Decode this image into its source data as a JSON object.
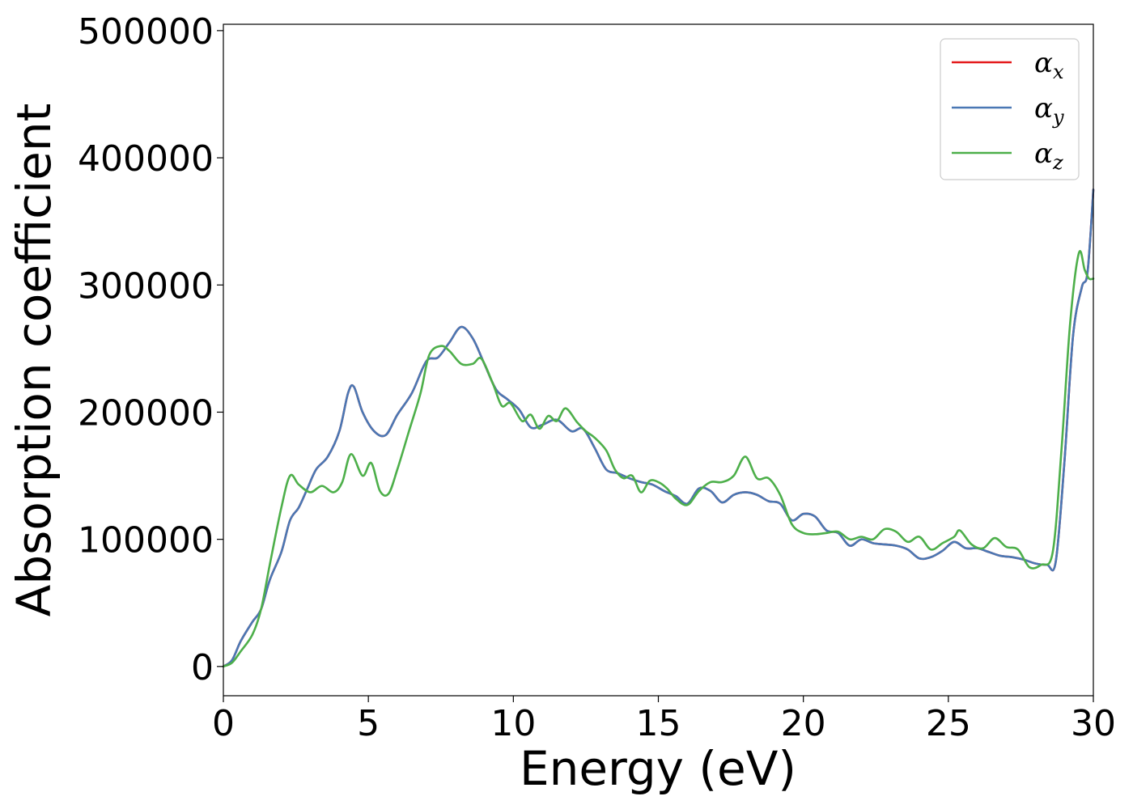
{
  "chart_data": {
    "type": "line",
    "xlabel": "Energy (eV)",
    "ylabel": "Absorption coefficient",
    "xlim": [
      0,
      30
    ],
    "ylim": [
      -23000,
      505000
    ],
    "x_ticks": [
      "0",
      "5",
      "10",
      "15",
      "20",
      "25",
      "30"
    ],
    "y_ticks": [
      "0",
      "100000",
      "200000",
      "300000",
      "400000",
      "500000"
    ],
    "grid": false,
    "legend_position": "top-right",
    "series": [
      {
        "name": "x",
        "color": "#e41a1c",
        "points": [
          [
            0,
            0
          ],
          [
            0.3,
            5000
          ],
          [
            0.6,
            20000
          ],
          [
            1.0,
            35000
          ],
          [
            1.3,
            45000
          ],
          [
            1.6,
            68000
          ],
          [
            2.0,
            90000
          ],
          [
            2.3,
            115000
          ],
          [
            2.6,
            125000
          ],
          [
            2.9,
            140000
          ],
          [
            3.2,
            155000
          ],
          [
            3.6,
            165000
          ],
          [
            4.0,
            185000
          ],
          [
            4.3,
            215000
          ],
          [
            4.5,
            220000
          ],
          [
            4.8,
            200000
          ],
          [
            5.2,
            185000
          ],
          [
            5.6,
            182000
          ],
          [
            6.0,
            198000
          ],
          [
            6.5,
            215000
          ],
          [
            7.0,
            240000
          ],
          [
            7.4,
            243000
          ],
          [
            7.8,
            255000
          ],
          [
            8.2,
            267000
          ],
          [
            8.6,
            258000
          ],
          [
            9.0,
            238000
          ],
          [
            9.4,
            218000
          ],
          [
            9.8,
            210000
          ],
          [
            10.2,
            202000
          ],
          [
            10.6,
            188000
          ],
          [
            11.0,
            190000
          ],
          [
            11.5,
            194000
          ],
          [
            12.0,
            185000
          ],
          [
            12.4,
            187000
          ],
          [
            12.8,
            172000
          ],
          [
            13.2,
            155000
          ],
          [
            13.6,
            152000
          ],
          [
            14.0,
            148000
          ],
          [
            14.4,
            145000
          ],
          [
            14.8,
            143000
          ],
          [
            15.2,
            138000
          ],
          [
            15.6,
            134000
          ],
          [
            16.0,
            128000
          ],
          [
            16.4,
            140000
          ],
          [
            16.8,
            138000
          ],
          [
            17.2,
            129000
          ],
          [
            17.6,
            135000
          ],
          [
            18.0,
            137000
          ],
          [
            18.4,
            135000
          ],
          [
            18.8,
            130000
          ],
          [
            19.2,
            128000
          ],
          [
            19.6,
            115000
          ],
          [
            20.0,
            120000
          ],
          [
            20.4,
            118000
          ],
          [
            20.8,
            107000
          ],
          [
            21.2,
            105000
          ],
          [
            21.6,
            95000
          ],
          [
            22.0,
            100000
          ],
          [
            22.4,
            97000
          ],
          [
            22.8,
            96000
          ],
          [
            23.2,
            95000
          ],
          [
            23.6,
            92000
          ],
          [
            24.0,
            85000
          ],
          [
            24.4,
            86000
          ],
          [
            24.8,
            91000
          ],
          [
            25.2,
            98000
          ],
          [
            25.6,
            93000
          ],
          [
            26.0,
            93000
          ],
          [
            26.4,
            90000
          ],
          [
            26.8,
            87000
          ],
          [
            27.2,
            86000
          ],
          [
            27.6,
            84000
          ],
          [
            28.0,
            81000
          ],
          [
            28.4,
            80000
          ],
          [
            28.7,
            82000
          ],
          [
            29.0,
            160000
          ],
          [
            29.3,
            260000
          ],
          [
            29.6,
            298000
          ],
          [
            29.8,
            310000
          ],
          [
            30.0,
            375000
          ]
        ]
      },
      {
        "name": "y",
        "color": "#4a78b4",
        "points": [
          [
            0,
            0
          ],
          [
            0.3,
            5000
          ],
          [
            0.6,
            20000
          ],
          [
            1.0,
            35000
          ],
          [
            1.3,
            45000
          ],
          [
            1.6,
            68000
          ],
          [
            2.0,
            90000
          ],
          [
            2.3,
            115000
          ],
          [
            2.6,
            125000
          ],
          [
            2.9,
            140000
          ],
          [
            3.2,
            155000
          ],
          [
            3.6,
            165000
          ],
          [
            4.0,
            185000
          ],
          [
            4.3,
            215000
          ],
          [
            4.5,
            220000
          ],
          [
            4.8,
            200000
          ],
          [
            5.2,
            185000
          ],
          [
            5.6,
            182000
          ],
          [
            6.0,
            198000
          ],
          [
            6.5,
            215000
          ],
          [
            7.0,
            240000
          ],
          [
            7.4,
            243000
          ],
          [
            7.8,
            255000
          ],
          [
            8.2,
            267000
          ],
          [
            8.6,
            258000
          ],
          [
            9.0,
            238000
          ],
          [
            9.4,
            218000
          ],
          [
            9.8,
            210000
          ],
          [
            10.2,
            202000
          ],
          [
            10.6,
            188000
          ],
          [
            11.0,
            190000
          ],
          [
            11.5,
            194000
          ],
          [
            12.0,
            185000
          ],
          [
            12.4,
            187000
          ],
          [
            12.8,
            172000
          ],
          [
            13.2,
            155000
          ],
          [
            13.6,
            152000
          ],
          [
            14.0,
            148000
          ],
          [
            14.4,
            145000
          ],
          [
            14.8,
            143000
          ],
          [
            15.2,
            138000
          ],
          [
            15.6,
            134000
          ],
          [
            16.0,
            128000
          ],
          [
            16.4,
            140000
          ],
          [
            16.8,
            138000
          ],
          [
            17.2,
            129000
          ],
          [
            17.6,
            135000
          ],
          [
            18.0,
            137000
          ],
          [
            18.4,
            135000
          ],
          [
            18.8,
            130000
          ],
          [
            19.2,
            128000
          ],
          [
            19.6,
            115000
          ],
          [
            20.0,
            120000
          ],
          [
            20.4,
            118000
          ],
          [
            20.8,
            107000
          ],
          [
            21.2,
            105000
          ],
          [
            21.6,
            95000
          ],
          [
            22.0,
            100000
          ],
          [
            22.4,
            97000
          ],
          [
            22.8,
            96000
          ],
          [
            23.2,
            95000
          ],
          [
            23.6,
            92000
          ],
          [
            24.0,
            85000
          ],
          [
            24.4,
            86000
          ],
          [
            24.8,
            91000
          ],
          [
            25.2,
            98000
          ],
          [
            25.6,
            93000
          ],
          [
            26.0,
            93000
          ],
          [
            26.4,
            90000
          ],
          [
            26.8,
            87000
          ],
          [
            27.2,
            86000
          ],
          [
            27.6,
            84000
          ],
          [
            28.0,
            81000
          ],
          [
            28.4,
            80000
          ],
          [
            28.7,
            82000
          ],
          [
            29.0,
            160000
          ],
          [
            29.3,
            260000
          ],
          [
            29.6,
            298000
          ],
          [
            29.8,
            310000
          ],
          [
            30.0,
            375000
          ]
        ]
      },
      {
        "name": "z",
        "color": "#4daf4a",
        "points": [
          [
            0,
            0
          ],
          [
            0.3,
            3000
          ],
          [
            0.6,
            12000
          ],
          [
            1.0,
            25000
          ],
          [
            1.3,
            45000
          ],
          [
            1.6,
            80000
          ],
          [
            2.0,
            125000
          ],
          [
            2.3,
            150000
          ],
          [
            2.6,
            143000
          ],
          [
            3.0,
            137000
          ],
          [
            3.4,
            142000
          ],
          [
            3.8,
            137000
          ],
          [
            4.1,
            145000
          ],
          [
            4.4,
            167000
          ],
          [
            4.8,
            150000
          ],
          [
            5.1,
            160000
          ],
          [
            5.4,
            138000
          ],
          [
            5.7,
            136000
          ],
          [
            6.0,
            155000
          ],
          [
            6.4,
            185000
          ],
          [
            6.8,
            215000
          ],
          [
            7.1,
            245000
          ],
          [
            7.5,
            252000
          ],
          [
            7.8,
            248000
          ],
          [
            8.2,
            238000
          ],
          [
            8.6,
            238000
          ],
          [
            8.9,
            242000
          ],
          [
            9.3,
            222000
          ],
          [
            9.6,
            205000
          ],
          [
            9.9,
            207000
          ],
          [
            10.3,
            193000
          ],
          [
            10.6,
            198000
          ],
          [
            10.9,
            187000
          ],
          [
            11.2,
            197000
          ],
          [
            11.5,
            193000
          ],
          [
            11.8,
            203000
          ],
          [
            12.2,
            192000
          ],
          [
            12.5,
            185000
          ],
          [
            12.8,
            180000
          ],
          [
            13.2,
            170000
          ],
          [
            13.5,
            155000
          ],
          [
            13.8,
            148000
          ],
          [
            14.1,
            150000
          ],
          [
            14.4,
            137000
          ],
          [
            14.7,
            146000
          ],
          [
            15.0,
            145000
          ],
          [
            15.3,
            140000
          ],
          [
            15.6,
            132000
          ],
          [
            16.0,
            127000
          ],
          [
            16.4,
            138000
          ],
          [
            16.8,
            145000
          ],
          [
            17.2,
            145000
          ],
          [
            17.6,
            150000
          ],
          [
            18.0,
            165000
          ],
          [
            18.4,
            148000
          ],
          [
            18.8,
            148000
          ],
          [
            19.2,
            135000
          ],
          [
            19.6,
            112000
          ],
          [
            20.0,
            105000
          ],
          [
            20.4,
            104000
          ],
          [
            20.8,
            105000
          ],
          [
            21.2,
            106000
          ],
          [
            21.6,
            100000
          ],
          [
            22.0,
            102000
          ],
          [
            22.4,
            100000
          ],
          [
            22.8,
            108000
          ],
          [
            23.2,
            106000
          ],
          [
            23.6,
            98000
          ],
          [
            24.0,
            102000
          ],
          [
            24.4,
            92000
          ],
          [
            24.8,
            97000
          ],
          [
            25.2,
            102000
          ],
          [
            25.4,
            107000
          ],
          [
            25.8,
            96000
          ],
          [
            26.2,
            93000
          ],
          [
            26.6,
            101000
          ],
          [
            27.0,
            94000
          ],
          [
            27.4,
            92000
          ],
          [
            27.8,
            78000
          ],
          [
            28.2,
            80000
          ],
          [
            28.6,
            90000
          ],
          [
            28.9,
            170000
          ],
          [
            29.2,
            270000
          ],
          [
            29.5,
            325000
          ],
          [
            29.7,
            312000
          ],
          [
            29.85,
            305000
          ],
          [
            30.0,
            305000
          ]
        ]
      }
    ]
  },
  "legend": {
    "items": [
      {
        "symbol": "α",
        "sub": "x",
        "color": "#e41a1c"
      },
      {
        "symbol": "α",
        "sub": "y",
        "color": "#4a78b4"
      },
      {
        "symbol": "α",
        "sub": "z",
        "color": "#4daf4a"
      }
    ]
  }
}
